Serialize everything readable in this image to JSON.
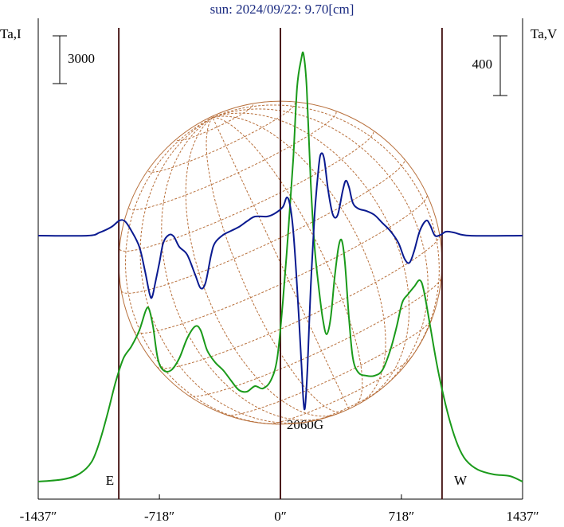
{
  "chart_data": {
    "type": "line",
    "title": "sun: 2024/09/22: 9.70[cm]",
    "y_label": "Ta,I",
    "y2_label": "Ta,V",
    "xlim": [
      -1437,
      1437
    ],
    "xticks": [
      {
        "value": -1437,
        "label": "-1437″"
      },
      {
        "value": -718,
        "label": "-718″"
      },
      {
        "value": 0,
        "label": "0″"
      },
      {
        "value": 718,
        "label": "718″"
      },
      {
        "value": 1437,
        "label": "1437″"
      }
    ],
    "ylim": [
      -1100,
      29100
    ],
    "y2lim": [
      -1765,
      1456
    ],
    "y_scale_bar": 3000,
    "y2_scale_bar": 400,
    "x_markers": [
      -959,
      0,
      959
    ],
    "marker_color": "#4a1a1a",
    "disk_color": "#b8703c",
    "annotations": [
      "E",
      "W",
      "2060G"
    ],
    "series": [
      {
        "color": "#1a9a1a",
        "axis": "y",
        "x": [
          -1437,
          -1286,
          -1191,
          -1120,
          -1073,
          -1026,
          -978,
          -931,
          -884,
          -837,
          -799,
          -780,
          -756,
          -728,
          -695,
          -648,
          -600,
          -553,
          -506,
          -473,
          -435,
          -388,
          -340,
          -293,
          -246,
          -199,
          -151,
          -104,
          -57,
          -19,
          14,
          47,
          76,
          99,
          123,
          137,
          156,
          180,
          203,
          227,
          251,
          274,
          298,
          321,
          345,
          364,
          383,
          407,
          430,
          463,
          511,
          558,
          605,
          652,
          690,
          723,
          756,
          794,
          827,
          851,
          889,
          926,
          960,
          1007,
          1054,
          1101,
          1172,
          1267,
          1361,
          1437
        ],
        "values": [
          0,
          150,
          500,
          1250,
          2500,
          4250,
          6250,
          7750,
          8500,
          9500,
          10750,
          10850,
          9750,
          7750,
          7000,
          7000,
          7750,
          9000,
          9750,
          9500,
          8250,
          7500,
          7000,
          6350,
          5750,
          5650,
          6000,
          5850,
          6350,
          7750,
          11250,
          15750,
          20250,
          24750,
          26500,
          26850,
          24750,
          18750,
          14750,
          12250,
          10250,
          9250,
          10250,
          12750,
          14750,
          15150,
          13750,
          10250,
          7750,
          6850,
          6650,
          6650,
          7000,
          8250,
          9750,
          11250,
          11750,
          12250,
          12650,
          12000,
          9750,
          7500,
          5750,
          3750,
          2250,
          1350,
          750,
          450,
          350,
          0
        ]
      },
      {
        "color": "#0a1a90",
        "axis": "y2",
        "x": [
          -1437,
          -1144,
          -1073,
          -1002,
          -955,
          -922,
          -884,
          -837,
          -804,
          -775,
          -761,
          -742,
          -718,
          -695,
          -662,
          -633,
          -600,
          -553,
          -506,
          -473,
          -444,
          -411,
          -388,
          -340,
          -293,
          -246,
          -199,
          -151,
          -80,
          -33,
          14,
          38,
          57,
          76,
          99,
          123,
          137,
          147,
          161,
          180,
          203,
          227,
          241,
          260,
          284,
          312,
          340,
          369,
          388,
          407,
          430,
          463,
          511,
          558,
          605,
          652,
          700,
          737,
          766,
          794,
          827,
          865,
          889,
          917,
          950,
          983,
          1030,
          1125,
          1437
        ],
        "values": [
          0,
          0,
          21,
          59,
          101,
          96,
          32,
          -75,
          -234,
          -394,
          -410,
          -314,
          -181,
          -48,
          5,
          -5,
          -75,
          -128,
          -261,
          -352,
          -314,
          -128,
          -48,
          5,
          32,
          59,
          96,
          128,
          128,
          149,
          192,
          256,
          203,
          32,
          -341,
          -821,
          -1114,
          -1141,
          -874,
          -341,
          139,
          458,
          549,
          512,
          298,
          139,
          139,
          298,
          368,
          325,
          219,
          181,
          165,
          139,
          85,
          32,
          -48,
          -155,
          -181,
          -101,
          32,
          101,
          69,
          0,
          5,
          27,
          21,
          0,
          0
        ]
      }
    ]
  }
}
